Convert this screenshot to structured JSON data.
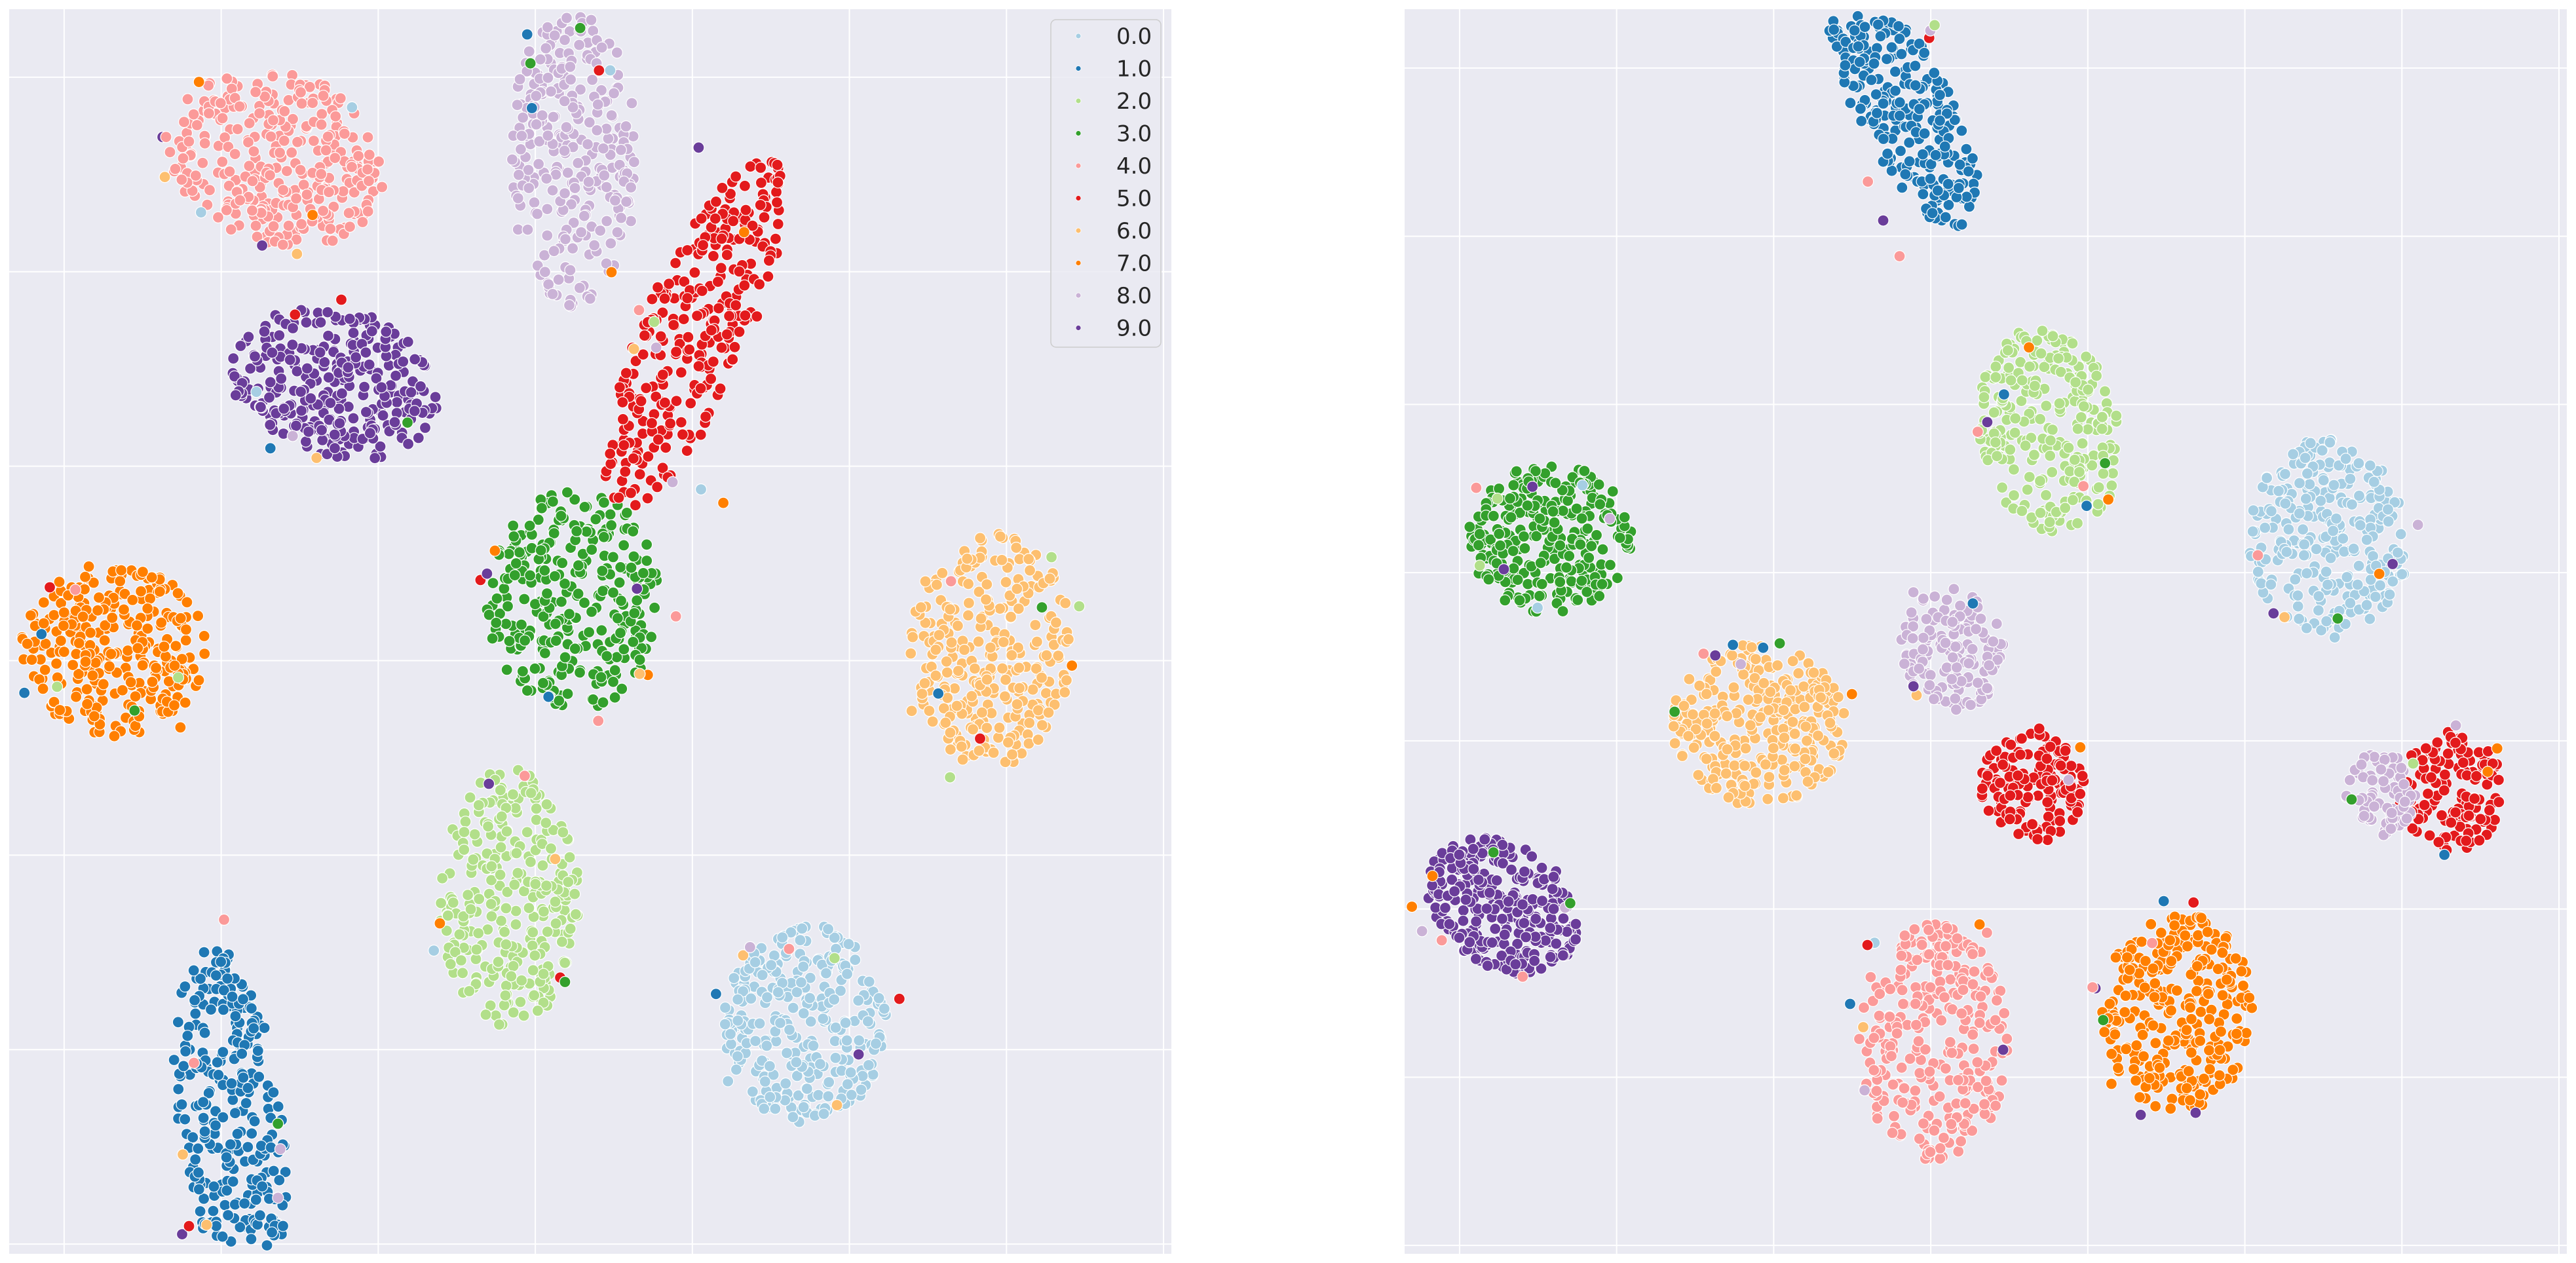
{
  "chart_data": [
    {
      "type": "scatter",
      "title": "",
      "xlabel": "",
      "ylabel": "",
      "grid": true,
      "background": "#eaeaf2",
      "legend": {
        "placement": "top-right",
        "entries": [
          "0.0",
          "1.0",
          "2.0",
          "3.0",
          "4.0",
          "5.0",
          "6.0",
          "7.0",
          "8.0",
          "9.0"
        ]
      },
      "palette": {
        "0.0": "#a6cee3",
        "1.0": "#1f78b4",
        "2.0": "#b2df8a",
        "3.0": "#33a02c",
        "4.0": "#fb9a99",
        "5.0": "#e31a1c",
        "6.0": "#fdbf6f",
        "7.0": "#ff7f00",
        "8.0": "#cab2d6",
        "9.0": "#6a3d9a"
      },
      "xlim": [
        -10,
        10
      ],
      "ylim": [
        -10,
        10
      ],
      "series": [
        {
          "name": "0.0",
          "cx": 3.7,
          "cy": -6.3,
          "rx": 1.4,
          "ry": 1.6,
          "rot": 0,
          "n": 300
        },
        {
          "name": "1.0",
          "cx": -6.2,
          "cy": -7.8,
          "rx": 0.9,
          "ry": 2.8,
          "rot": 8,
          "n": 300
        },
        {
          "name": "2.0",
          "cx": -1.4,
          "cy": -4.3,
          "rx": 1.2,
          "ry": 2.1,
          "rot": 0,
          "n": 280
        },
        {
          "name": "3.0",
          "cx": -0.3,
          "cy": 0.5,
          "rx": 1.5,
          "ry": 1.8,
          "rot": 0,
          "n": 300
        },
        {
          "name": "4.0",
          "cx": -5.4,
          "cy": 7.6,
          "rx": 1.9,
          "ry": 1.4,
          "rot": -15,
          "n": 320
        },
        {
          "name": "5.0",
          "cx": 1.8,
          "cy": 4.8,
          "rx": 0.9,
          "ry": 3.1,
          "rot": -25,
          "n": 300
        },
        {
          "name": "6.0",
          "cx": 6.9,
          "cy": -0.3,
          "rx": 1.4,
          "ry": 1.9,
          "rot": 0,
          "n": 300
        },
        {
          "name": "7.0",
          "cx": -8.2,
          "cy": -0.3,
          "rx": 1.6,
          "ry": 1.4,
          "rot": 0,
          "n": 300
        },
        {
          "name": "8.0",
          "cx": -0.3,
          "cy": 7.6,
          "rx": 1.1,
          "ry": 2.4,
          "rot": 0,
          "n": 280
        },
        {
          "name": "9.0",
          "cx": -4.4,
          "cy": 4.0,
          "rx": 1.8,
          "ry": 1.2,
          "rot": -15,
          "n": 300
        }
      ]
    },
    {
      "type": "scatter",
      "title": "",
      "xlabel": "",
      "ylabel": "",
      "grid": true,
      "background": "#eaeaf2",
      "xlim": [
        -10,
        10
      ],
      "ylim": [
        -10,
        10
      ],
      "series": [
        {
          "name": "0.0",
          "cx": 5.9,
          "cy": 1.5,
          "rx": 1.4,
          "ry": 1.6,
          "rot": 0,
          "n": 280
        },
        {
          "name": "1.0",
          "cx": -1.4,
          "cy": 8.4,
          "rx": 0.8,
          "ry": 2.2,
          "rot": 30,
          "n": 280
        },
        {
          "name": "2.0",
          "cx": 1.1,
          "cy": 3.2,
          "rx": 1.2,
          "ry": 1.7,
          "rot": 15,
          "n": 260
        },
        {
          "name": "3.0",
          "cx": -7.5,
          "cy": 1.5,
          "rx": 1.4,
          "ry": 1.2,
          "rot": 0,
          "n": 280
        },
        {
          "name": "4.0",
          "cx": -0.9,
          "cy": -6.6,
          "rx": 1.3,
          "ry": 1.9,
          "rot": 0,
          "n": 300
        },
        {
          "name": "5.0",
          "cx": 0.8,
          "cy": -2.5,
          "rx": 0.9,
          "ry": 0.9,
          "rot": 0,
          "n": 140
        },
        {
          "name": "6.0",
          "cx": -3.9,
          "cy": -1.5,
          "rx": 1.5,
          "ry": 1.3,
          "rot": 0,
          "n": 300
        },
        {
          "name": "7.0",
          "cx": 3.3,
          "cy": -6.1,
          "rx": 1.3,
          "ry": 1.6,
          "rot": 0,
          "n": 300
        },
        {
          "name": "8.0",
          "cx": -0.6,
          "cy": -0.3,
          "rx": 0.9,
          "ry": 1.0,
          "rot": 0,
          "n": 140
        },
        {
          "name": "9.0",
          "cx": -8.3,
          "cy": -4.4,
          "rx": 1.4,
          "ry": 1.0,
          "rot": -30,
          "n": 280
        },
        {
          "name": "5.0",
          "cx": 8.0,
          "cy": -2.6,
          "rx": 0.9,
          "ry": 1.0,
          "rot": 0,
          "n": 140
        },
        {
          "name": "8.0",
          "cx": 6.8,
          "cy": -2.6,
          "rx": 0.6,
          "ry": 0.7,
          "rot": 0,
          "n": 80
        }
      ]
    }
  ]
}
